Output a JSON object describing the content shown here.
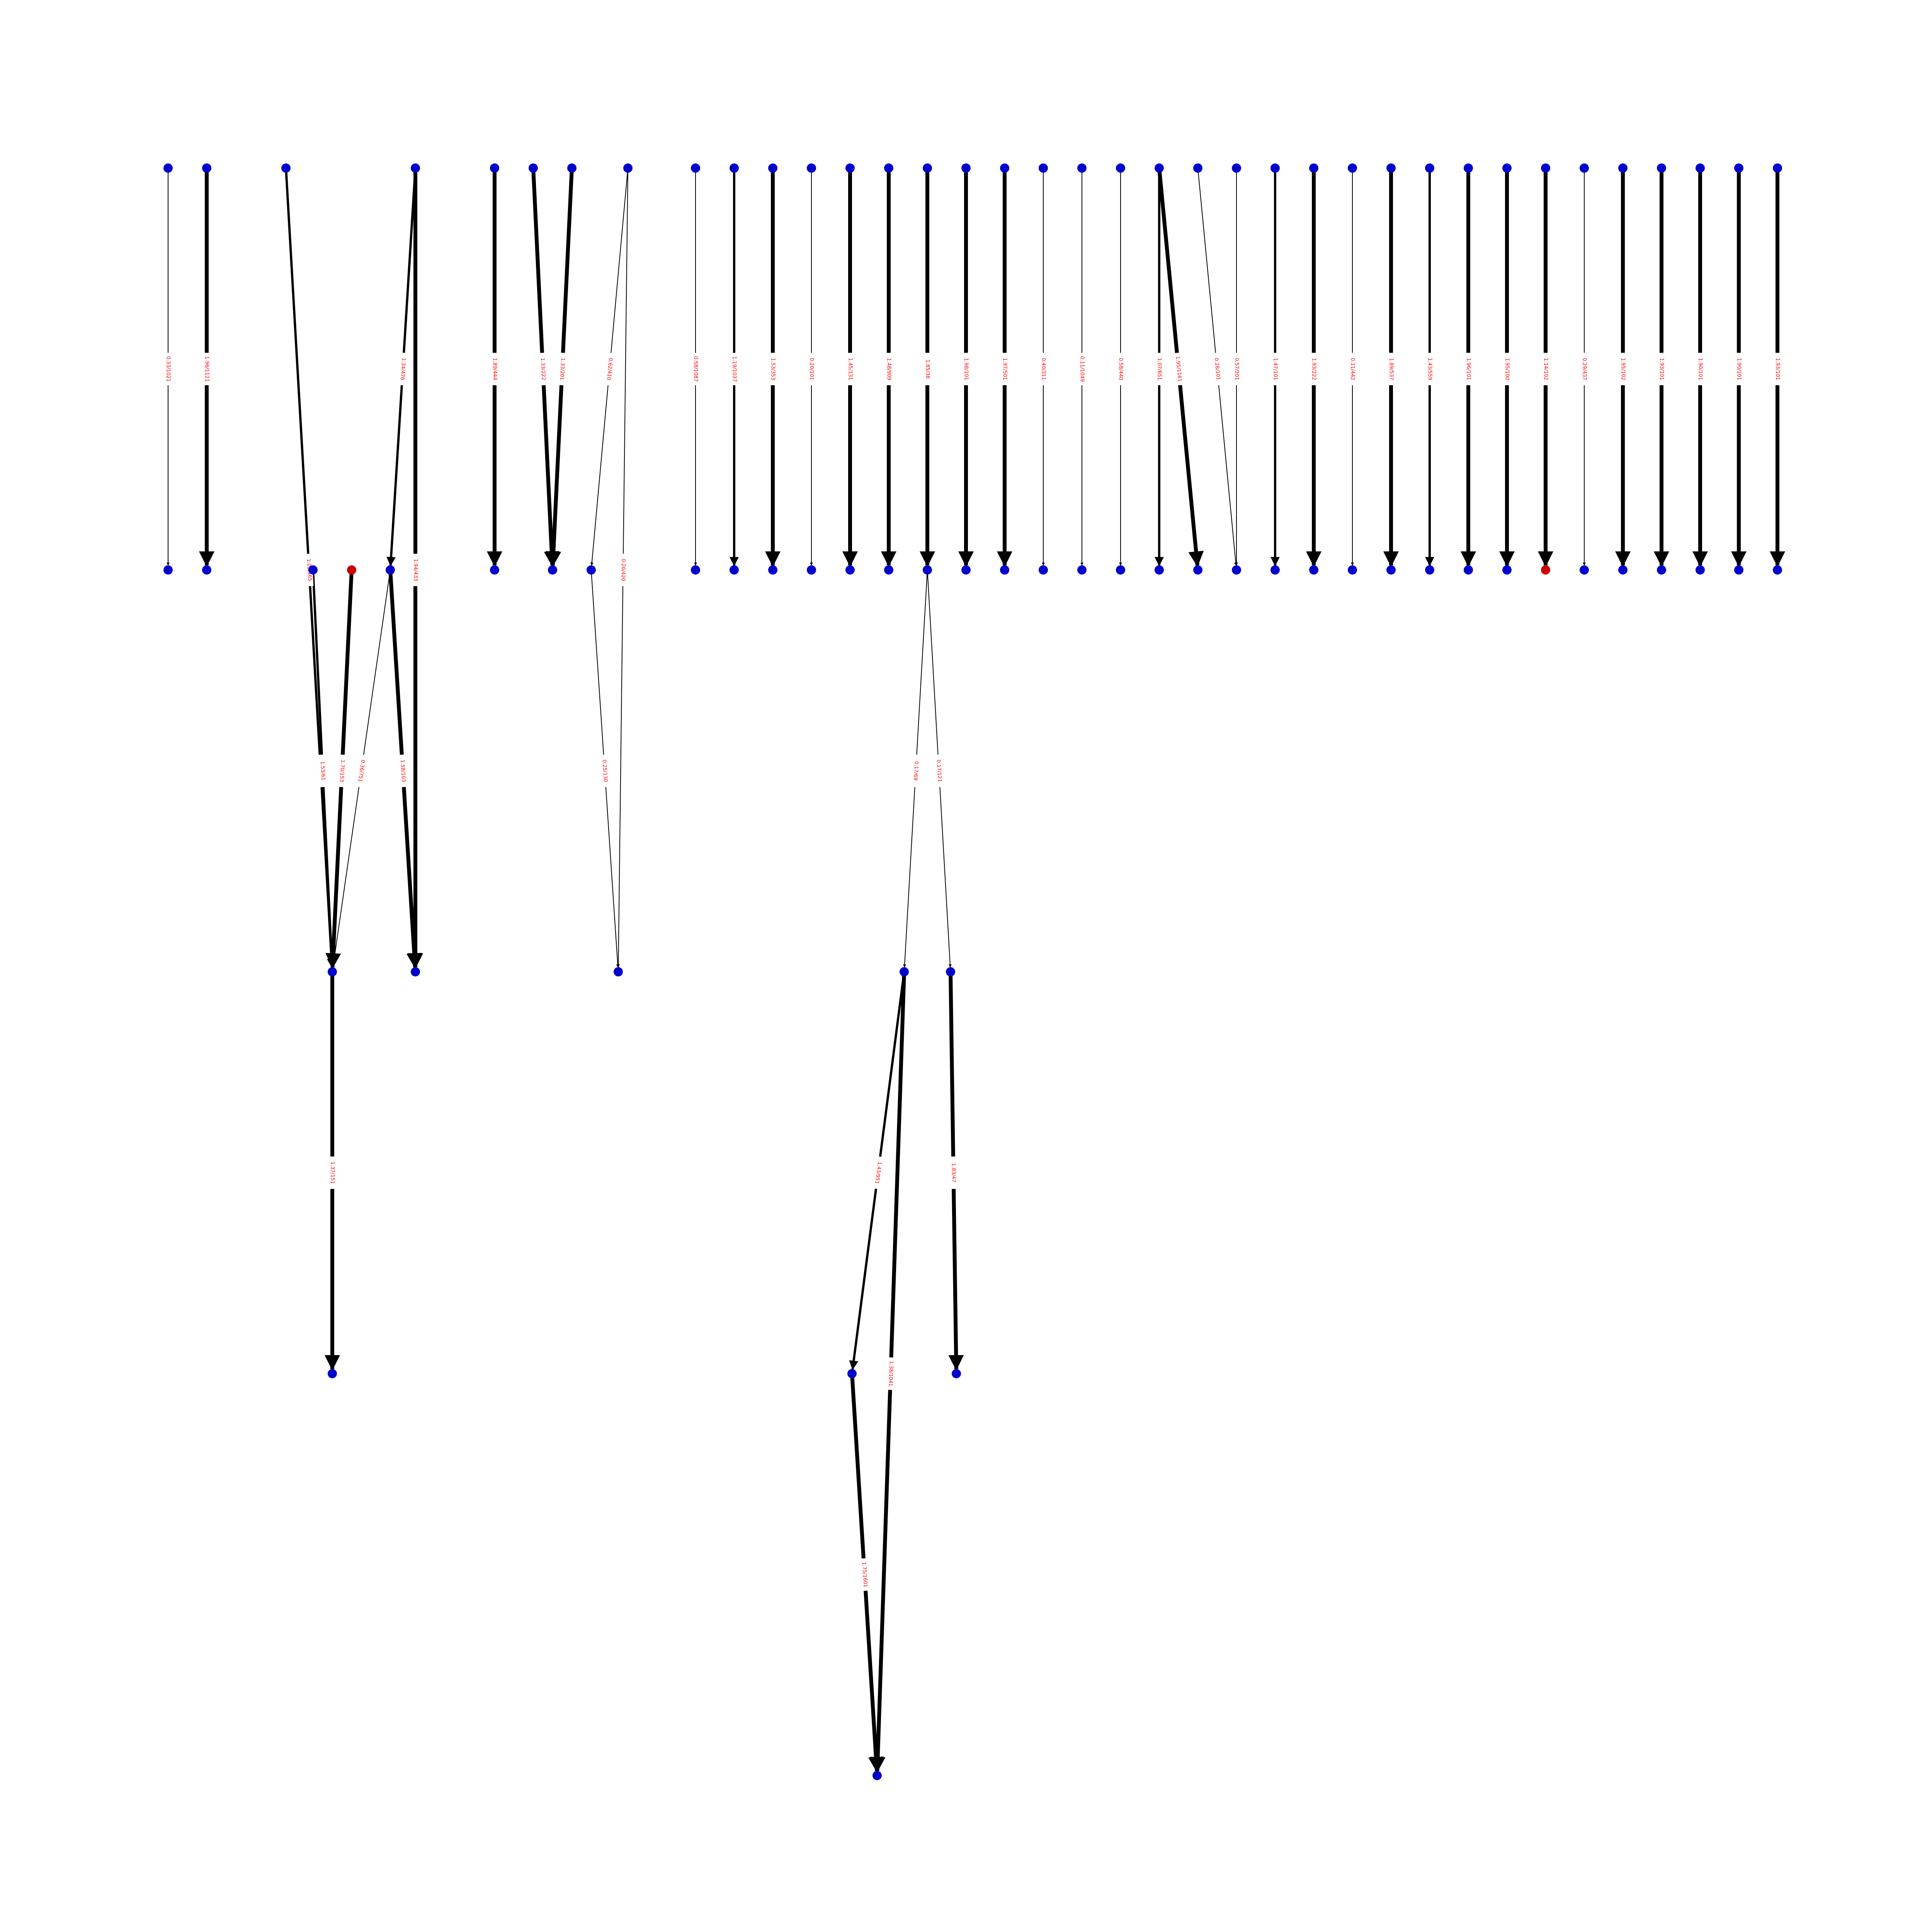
{
  "colors": {
    "node_default": "#0000cc",
    "node_highlight": "#cc0000",
    "edge": "#000000",
    "label_text": "#ff0000",
    "label_background": "#ffffff"
  },
  "graph": {
    "nodes": [
      {
        "id": "A1",
        "color": "blue"
      },
      {
        "id": "B1",
        "color": "blue"
      },
      {
        "id": "A2",
        "color": "blue"
      },
      {
        "id": "B2",
        "color": "blue"
      },
      {
        "id": "A3",
        "color": "blue"
      },
      {
        "id": "A4",
        "color": "blue"
      },
      {
        "id": "B4",
        "color": "blue"
      },
      {
        "id": "B3",
        "color": "red"
      },
      {
        "id": "B5",
        "color": "blue"
      },
      {
        "id": "C1",
        "color": "blue"
      },
      {
        "id": "C2",
        "color": "blue"
      },
      {
        "id": "D1",
        "color": "blue"
      },
      {
        "id": "A5",
        "color": "blue"
      },
      {
        "id": "A6",
        "color": "blue"
      },
      {
        "id": "A7",
        "color": "blue"
      },
      {
        "id": "B6",
        "color": "blue"
      },
      {
        "id": "B7",
        "color": "blue"
      },
      {
        "id": "A8",
        "color": "blue"
      },
      {
        "id": "B8",
        "color": "blue"
      },
      {
        "id": "C3",
        "color": "blue"
      },
      {
        "id": "A9",
        "color": "blue"
      },
      {
        "id": "B9",
        "color": "blue"
      },
      {
        "id": "A10",
        "color": "blue"
      },
      {
        "id": "B10",
        "color": "blue"
      },
      {
        "id": "A11",
        "color": "blue"
      },
      {
        "id": "B11",
        "color": "blue"
      },
      {
        "id": "A12",
        "color": "blue"
      },
      {
        "id": "B12",
        "color": "blue"
      },
      {
        "id": "A13",
        "color": "blue"
      },
      {
        "id": "B13",
        "color": "blue"
      },
      {
        "id": "A14",
        "color": "blue"
      },
      {
        "id": "B14",
        "color": "blue"
      },
      {
        "id": "A15",
        "color": "blue"
      },
      {
        "id": "B15",
        "color": "blue"
      },
      {
        "id": "A16",
        "color": "blue"
      },
      {
        "id": "B16",
        "color": "blue"
      },
      {
        "id": "C4",
        "color": "blue"
      },
      {
        "id": "C5",
        "color": "blue"
      },
      {
        "id": "D2",
        "color": "blue"
      },
      {
        "id": "D3",
        "color": "blue"
      },
      {
        "id": "E1",
        "color": "blue"
      },
      {
        "id": "A17",
        "color": "blue"
      },
      {
        "id": "B17",
        "color": "blue"
      },
      {
        "id": "A18",
        "color": "blue"
      },
      {
        "id": "B18",
        "color": "blue"
      },
      {
        "id": "A19",
        "color": "blue"
      },
      {
        "id": "B19",
        "color": "blue"
      },
      {
        "id": "A20",
        "color": "blue"
      },
      {
        "id": "B20",
        "color": "blue"
      },
      {
        "id": "A21",
        "color": "blue"
      },
      {
        "id": "B21",
        "color": "blue"
      },
      {
        "id": "A22",
        "color": "blue"
      },
      {
        "id": "B22",
        "color": "blue"
      },
      {
        "id": "A23",
        "color": "blue"
      },
      {
        "id": "B23",
        "color": "blue"
      },
      {
        "id": "A24",
        "color": "blue"
      },
      {
        "id": "A25",
        "color": "blue"
      },
      {
        "id": "B24",
        "color": "blue"
      },
      {
        "id": "B25",
        "color": "blue"
      },
      {
        "id": "A26",
        "color": "blue"
      },
      {
        "id": "B26",
        "color": "blue"
      },
      {
        "id": "A27",
        "color": "blue"
      },
      {
        "id": "B27",
        "color": "blue"
      },
      {
        "id": "A28",
        "color": "blue"
      },
      {
        "id": "B28",
        "color": "blue"
      },
      {
        "id": "A29",
        "color": "blue"
      },
      {
        "id": "B29",
        "color": "blue"
      },
      {
        "id": "A30",
        "color": "blue"
      },
      {
        "id": "B30",
        "color": "blue"
      },
      {
        "id": "A31",
        "color": "blue"
      },
      {
        "id": "B31",
        "color": "blue"
      },
      {
        "id": "A32",
        "color": "blue"
      },
      {
        "id": "B32",
        "color": "blue"
      },
      {
        "id": "A33",
        "color": "blue"
      },
      {
        "id": "B33",
        "color": "blue"
      },
      {
        "id": "A34",
        "color": "blue"
      },
      {
        "id": "B34",
        "color": "red"
      },
      {
        "id": "A35",
        "color": "blue"
      },
      {
        "id": "B35",
        "color": "blue"
      },
      {
        "id": "A36",
        "color": "blue"
      },
      {
        "id": "B36",
        "color": "blue"
      },
      {
        "id": "A37",
        "color": "blue"
      },
      {
        "id": "B37",
        "color": "blue"
      },
      {
        "id": "A38",
        "color": "blue"
      },
      {
        "id": "B38",
        "color": "blue"
      },
      {
        "id": "A39",
        "color": "blue"
      },
      {
        "id": "B39",
        "color": "blue"
      },
      {
        "id": "A40",
        "color": "blue"
      },
      {
        "id": "B40",
        "color": "blue"
      }
    ],
    "edges": [
      {
        "from": "A1",
        "to": "B1",
        "weight": "thin",
        "label": "0.33/1021"
      },
      {
        "from": "A2",
        "to": "B2",
        "weight": "thick",
        "label": "1.96/1121"
      },
      {
        "from": "A3",
        "to": "C1",
        "weight": "medium",
        "label": "1.02/565"
      },
      {
        "from": "A4",
        "to": "B5",
        "weight": "medium",
        "label": "1.34/476"
      },
      {
        "from": "A4",
        "to": "C2",
        "weight": "thick",
        "label": "1.94/433"
      },
      {
        "from": "B4",
        "to": "C1",
        "weight": "medium",
        "label": "1.53/61"
      },
      {
        "from": "B3",
        "to": "C1",
        "weight": "thick",
        "label": "1.70/153"
      },
      {
        "from": "B5",
        "to": "C1",
        "weight": "thin",
        "label": "0.36/751"
      },
      {
        "from": "B5",
        "to": "C2",
        "weight": "thick",
        "label": "1.58/103"
      },
      {
        "from": "C1",
        "to": "D1",
        "weight": "thick",
        "label": "1.37/151"
      },
      {
        "from": "A5",
        "to": "B6",
        "weight": "thick",
        "label": "1.89/444"
      },
      {
        "from": "A6",
        "to": "B7",
        "weight": "thick",
        "label": "1.33/222"
      },
      {
        "from": "A7",
        "to": "B7",
        "weight": "thick",
        "label": "1.33/201"
      },
      {
        "from": "A8",
        "to": "B8",
        "weight": "thin",
        "label": "0.62/410"
      },
      {
        "from": "A8",
        "to": "C3",
        "weight": "thin",
        "label": "0.20/420"
      },
      {
        "from": "B8",
        "to": "C3",
        "weight": "thin",
        "label": "0.25/130"
      },
      {
        "from": "A9",
        "to": "B9",
        "weight": "thin",
        "label": "0.58/1087"
      },
      {
        "from": "A10",
        "to": "B10",
        "weight": "medium",
        "label": "1.19/1037"
      },
      {
        "from": "A11",
        "to": "B11",
        "weight": "thick",
        "label": "1.53/353"
      },
      {
        "from": "A12",
        "to": "B12",
        "weight": "thin",
        "label": "0.20/101"
      },
      {
        "from": "A13",
        "to": "B13",
        "weight": "thick",
        "label": "1.45/131"
      },
      {
        "from": "A14",
        "to": "B14",
        "weight": "thick",
        "label": "1.48/909"
      },
      {
        "from": "A15",
        "to": "B15",
        "weight": "thick",
        "label": "1.85/38"
      },
      {
        "from": "B15",
        "to": "C4",
        "weight": "thin",
        "label": "0.17/69"
      },
      {
        "from": "B15",
        "to": "C5",
        "weight": "thin",
        "label": "0.17/121"
      },
      {
        "from": "C4",
        "to": "D2",
        "weight": "medium",
        "label": "1.43/951"
      },
      {
        "from": "C4",
        "to": "E1",
        "weight": "thick",
        "label": "1.38/1041"
      },
      {
        "from": "C5",
        "to": "D3",
        "weight": "thick",
        "label": "1.83/47"
      },
      {
        "from": "D2",
        "to": "E1",
        "weight": "thick",
        "label": "1.75/1601"
      },
      {
        "from": "A16",
        "to": "B16",
        "weight": "thick",
        "label": "1.98/101"
      },
      {
        "from": "A17",
        "to": "B17",
        "weight": "thick",
        "label": "1.97/501"
      },
      {
        "from": "A18",
        "to": "B18",
        "weight": "thin",
        "label": "0.40/311"
      },
      {
        "from": "A19",
        "to": "B19",
        "weight": "thin",
        "label": "0.11/1049"
      },
      {
        "from": "A20",
        "to": "B20",
        "weight": "thin",
        "label": "0.58/440"
      },
      {
        "from": "A21",
        "to": "B21",
        "weight": "medium",
        "label": "1.07/651"
      },
      {
        "from": "A21",
        "to": "B22",
        "weight": "thick",
        "label": "1.95/1161"
      },
      {
        "from": "A22",
        "to": "B23",
        "weight": "thin",
        "label": "0.28/101"
      },
      {
        "from": "A23",
        "to": "B23",
        "weight": "thin",
        "label": "0.57/201"
      },
      {
        "from": "A24",
        "to": "B24",
        "weight": "medium",
        "label": "1.47/101"
      },
      {
        "from": "A25",
        "to": "B25",
        "weight": "thick",
        "label": "1.93/222"
      },
      {
        "from": "A26",
        "to": "B26",
        "weight": "thin",
        "label": "0.11/442"
      },
      {
        "from": "A27",
        "to": "B27",
        "weight": "thick",
        "label": "1.89/537"
      },
      {
        "from": "A28",
        "to": "B28",
        "weight": "medium",
        "label": "1.43/559"
      },
      {
        "from": "A29",
        "to": "B29",
        "weight": "thick",
        "label": "1.96/101"
      },
      {
        "from": "A30",
        "to": "B30",
        "weight": "thick",
        "label": "1.95/100"
      },
      {
        "from": "A31",
        "to": "B34",
        "weight": "thick",
        "label": "1.14/102"
      },
      {
        "from": "A32",
        "to": "B35",
        "weight": "thin",
        "label": "0.29/437"
      },
      {
        "from": "A33",
        "to": "B36",
        "weight": "thick",
        "label": "1.95/102"
      },
      {
        "from": "A34",
        "to": "B37",
        "weight": "thick",
        "label": "1.93/101"
      },
      {
        "from": "A35",
        "to": "B38",
        "weight": "thick",
        "label": "1.90/101"
      },
      {
        "from": "A36",
        "to": "B39",
        "weight": "thick",
        "label": "1.90/101"
      },
      {
        "from": "A37",
        "to": "B40",
        "weight": "thick",
        "label": "1.93/101"
      }
    ]
  }
}
